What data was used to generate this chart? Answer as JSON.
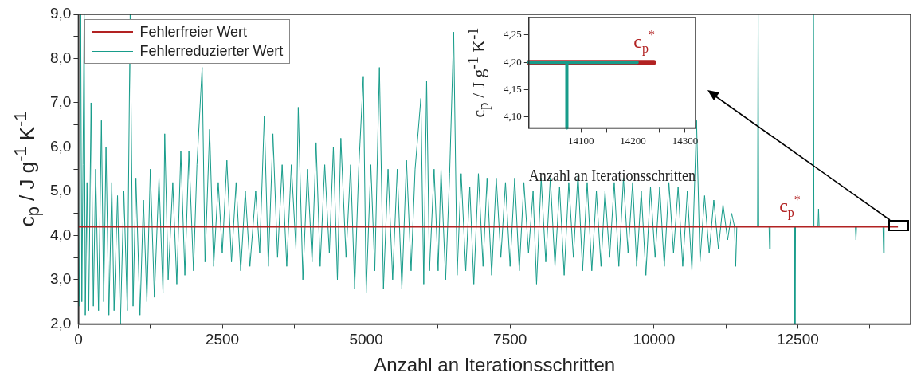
{
  "chart_data": [
    {
      "type": "line",
      "xlabel": "Anzahl an Iterationsschritten",
      "ylabel": "c$_{p}$ / J g$^{-1}$ K$^{-1}$",
      "legend": "top left",
      "grid": false,
      "xlim": [
        0,
        14460
      ],
      "ylim": [
        2,
        9
      ],
      "xticks": [
        0,
        {
          "value": 1250,
          "label": null
        },
        2500,
        {
          "value": 3750,
          "label": null
        },
        5000,
        {
          "value": 6250,
          "label": null
        },
        7500,
        {
          "value": 8750,
          "label": null
        },
        10000,
        {
          "value": 11250,
          "label": null
        },
        12500,
        {
          "value": 13750,
          "label": null
        }
      ],
      "yticks": [
        {
          "value": 2,
          "label": "2,0"
        },
        {
          "value": 2.5,
          "label": null
        },
        {
          "value": 3,
          "label": "3,0"
        },
        {
          "value": 3.5,
          "label": null
        },
        {
          "value": 4,
          "label": "4,0"
        },
        {
          "value": 4.5,
          "label": null
        },
        {
          "value": 5,
          "label": "5,0"
        },
        {
          "value": 5.5,
          "label": null
        },
        {
          "value": 6,
          "label": "6,0"
        },
        {
          "value": 6.5,
          "label": null
        },
        {
          "value": 7,
          "label": "7,0"
        },
        {
          "value": 7.5,
          "label": null
        },
        {
          "value": 8,
          "label": "8,0"
        },
        {
          "value": 8.5,
          "label": null
        },
        {
          "value": 9,
          "label": "9,0"
        }
      ],
      "annotations": [
        "c$_{p}$$^{*}$"
      ],
      "series": [
        {
          "name": "Fehlerfreier Wert",
          "color": "#b22222",
          "x": [
            0,
            14240
          ],
          "values": [
            4.2,
            4.2
          ]
        },
        {
          "name": "Fehlerreduzierter Wert",
          "color": "#179c8a",
          "x": [
            0,
            20,
            40,
            60,
            80,
            100,
            120,
            150,
            180,
            220,
            260,
            300,
            350,
            400,
            440,
            480,
            530,
            580,
            620,
            680,
            730,
            790,
            850,
            900,
            950,
            1000,
            1070,
            1130,
            1190,
            1250,
            1320,
            1400,
            1470,
            1500,
            1560,
            1640,
            1710,
            1780,
            1850,
            1920,
            2000,
            2060,
            2150,
            2200,
            2280,
            2350,
            2430,
            2500,
            2580,
            2660,
            2740,
            2820,
            2900,
            2980,
            3080,
            3150,
            3230,
            3300,
            3380,
            3460,
            3540,
            3620,
            3700,
            3780,
            3820,
            3900,
            3980,
            4060,
            4130,
            4200,
            4280,
            4360,
            4430,
            4500,
            4560,
            4650,
            4730,
            4800,
            4870,
            4950,
            5000,
            5080,
            5150,
            5230,
            5300,
            5380,
            5460,
            5540,
            5620,
            5700,
            5780,
            5850,
            5950,
            6000,
            6050,
            6100,
            6180,
            6250,
            6300,
            6380,
            6450,
            6520,
            6580,
            6650,
            6730,
            6800,
            6870,
            6950,
            7030,
            7100,
            7180,
            7260,
            7340,
            7420,
            7500,
            7580,
            7660,
            7740,
            7820,
            7900,
            7960,
            8040,
            8120,
            8200,
            8280,
            8360,
            8440,
            8520,
            8600,
            8680,
            8760,
            8840,
            8920,
            9000,
            9080,
            9150,
            9230,
            9310,
            9390,
            9470,
            9550,
            9630,
            9700,
            9780,
            9860,
            9940,
            10020,
            10100,
            10180,
            10260,
            10340,
            10420,
            10500,
            10580,
            10660,
            10740,
            10800,
            10880,
            10960,
            11040,
            11120,
            11200,
            11280,
            11350,
            11400,
            11420,
            11440,
            11800,
            11810,
            11820,
            12000,
            12010,
            12020,
            12440,
            12450,
            12460,
            12760,
            12770,
            12780,
            12850,
            12860,
            12870,
            13500,
            13510,
            13520,
            13980,
            13990,
            14000
          ],
          "values": [
            4.0,
            2.4,
            9.0,
            2.5,
            5.6,
            9.0,
            2.2,
            5.2,
            2.3,
            7.0,
            2.4,
            5.5,
            2.3,
            6.6,
            2.5,
            6.0,
            2.2,
            5.2,
            2.3,
            4.9,
            2.0,
            5.0,
            2.3,
            9.0,
            2.4,
            5.3,
            2.2,
            4.8,
            2.5,
            5.5,
            2.6,
            5.3,
            2.7,
            6.3,
            3.0,
            5.2,
            2.9,
            5.9,
            3.1,
            5.9,
            3.2,
            5.6,
            7.8,
            3.4,
            6.4,
            3.3,
            5.2,
            3.6,
            5.7,
            3.4,
            5.2,
            3.2,
            5.0,
            3.3,
            5.0,
            3.6,
            6.7,
            3.3,
            6.3,
            3.5,
            5.6,
            3.3,
            5.6,
            3.7,
            6.9,
            3.0,
            5.5,
            3.4,
            6.1,
            3.3,
            5.6,
            3.6,
            6.0,
            3.0,
            6.2,
            3.5,
            5.6,
            2.8,
            5.5,
            7.6,
            2.7,
            5.6,
            3.2,
            7.8,
            2.8,
            5.5,
            3.0,
            5.5,
            2.8,
            5.7,
            3.2,
            5.5,
            7.1,
            2.9,
            7.5,
            3.2,
            5.5,
            3.2,
            5.5,
            3.0,
            5.4,
            8.6,
            3.1,
            5.4,
            3.2,
            5.1,
            2.9,
            5.4,
            3.3,
            5.3,
            3.1,
            5.3,
            3.5,
            5.2,
            3.3,
            5.3,
            3.2,
            5.2,
            3.6,
            5.0,
            2.9,
            5.3,
            3.4,
            5.3,
            3.3,
            5.1,
            3.1,
            5.2,
            3.5,
            5.4,
            3.2,
            5.2,
            3.2,
            5.0,
            3.3,
            5.0,
            3.5,
            5.2,
            3.3,
            5.3,
            3.6,
            5.2,
            3.3,
            5.0,
            3.1,
            5.1,
            3.5,
            5.1,
            3.3,
            5.2,
            3.6,
            5.1,
            3.3,
            5.0,
            3.2,
            6.6,
            3.4,
            4.9,
            3.6,
            4.8,
            3.7,
            4.7,
            3.9,
            4.5,
            4.2,
            3.3,
            4.2,
            4.2,
            9.0,
            4.2,
            4.2,
            3.7,
            4.2,
            4.2,
            2.0,
            4.2,
            4.2,
            9.0,
            4.2,
            4.2,
            4.6,
            4.2,
            4.2,
            3.9,
            4.2,
            4.2,
            3.6,
            4.2
          ]
        }
      ]
    },
    {
      "type": "line",
      "xlabel": "Anzahl an Iterationsschritten",
      "ylabel": "c$_{p}$ / J g$^{-1}$ K$^{-1}$",
      "grid": false,
      "xlim": [
        14000,
        14320
      ],
      "ylim": [
        4.08,
        4.282
      ],
      "xticks": [
        {
          "value": 14050,
          "label": null
        },
        14100,
        {
          "value": 14150,
          "label": null
        },
        14200,
        {
          "value": 14250,
          "label": null
        },
        14300
      ],
      "yticks": [
        {
          "value": 4.1,
          "label": "4,10"
        },
        {
          "value": 4.15,
          "label": "4,15"
        },
        {
          "value": 4.2,
          "label": "4,20"
        },
        {
          "value": 4.25,
          "label": "4,25"
        }
      ],
      "annotations": [
        "c$_{p}$$^{*}$"
      ],
      "series": [
        {
          "color": "#b22222",
          "x": [
            14000,
            14240
          ],
          "values": [
            4.2,
            4.2
          ]
        },
        {
          "color": "#179c8a",
          "x": [
            14000,
            14073,
            14073,
            14073,
            14208
          ],
          "values": [
            4.2,
            4.2,
            4.08,
            4.2,
            4.2
          ]
        }
      ]
    }
  ]
}
